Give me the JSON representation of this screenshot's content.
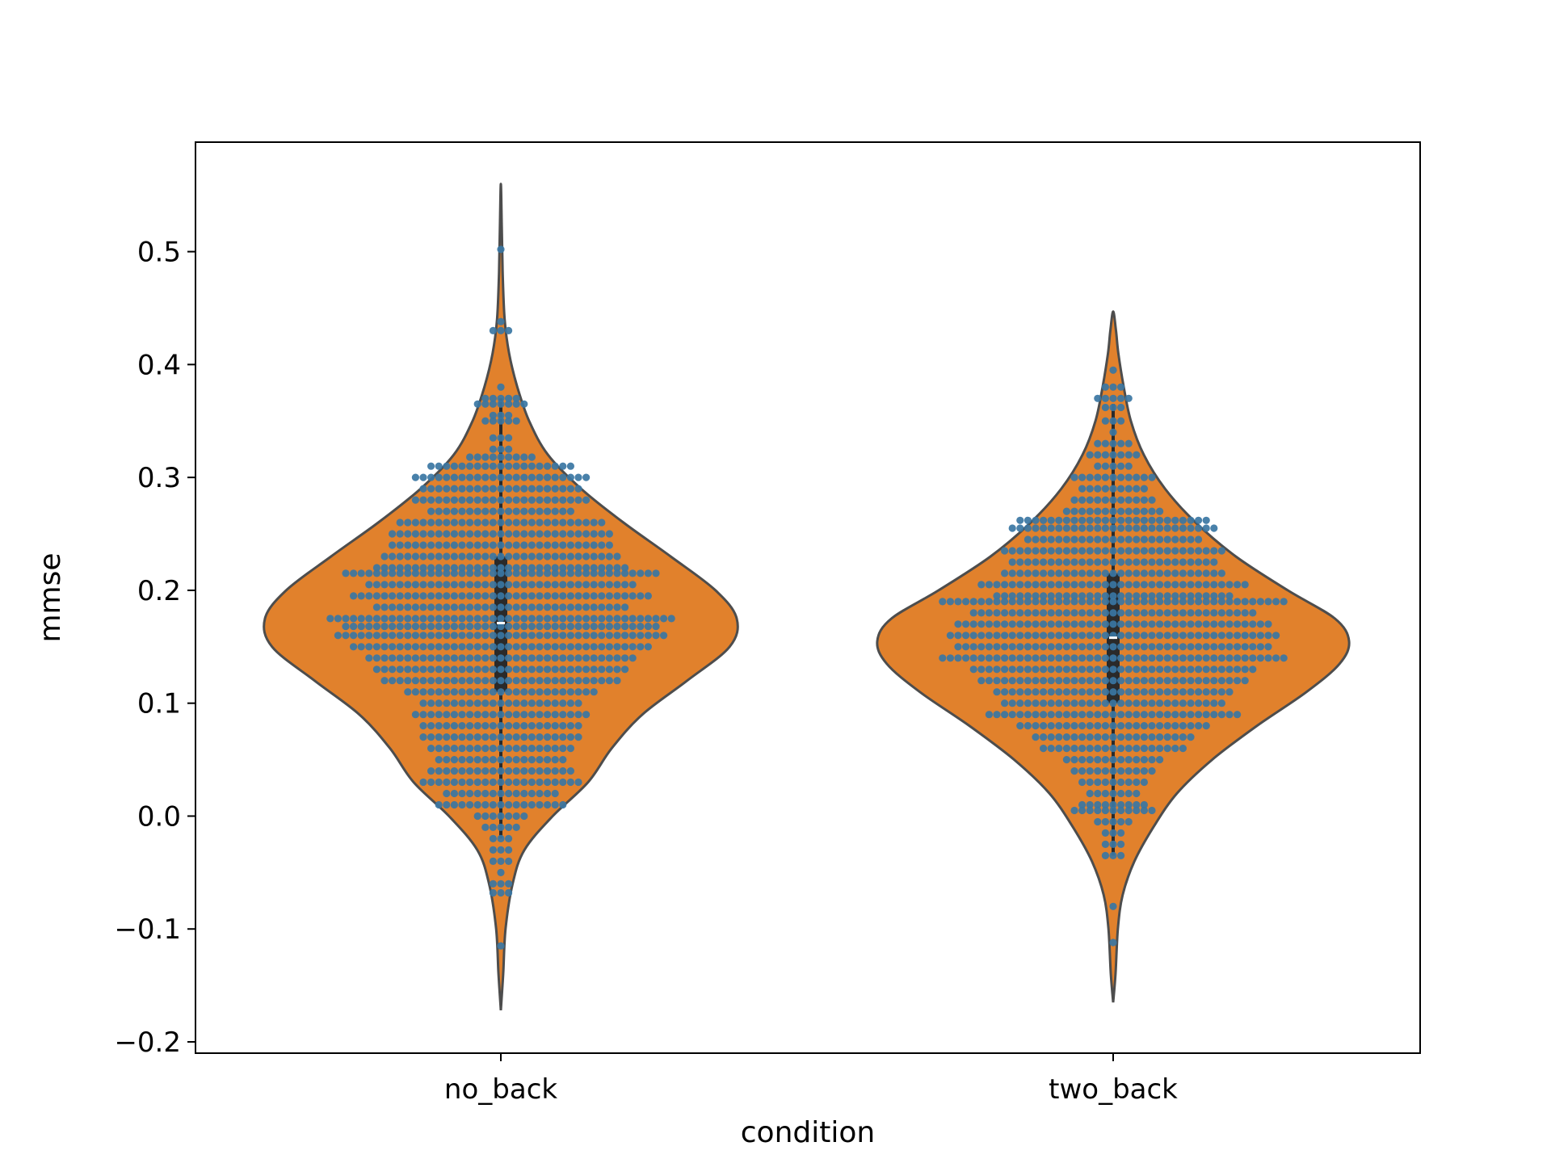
{
  "chart_data": {
    "type": "violin",
    "xlabel": "condition",
    "ylabel": "mmse",
    "ylim": [
      -0.21,
      0.597
    ],
    "yticks": [
      -0.2,
      -0.1,
      0.0,
      0.1,
      0.2,
      0.3,
      0.4,
      0.5
    ],
    "ytick_labels": [
      "−0.2",
      "−0.1",
      "0.0",
      "0.1",
      "0.2",
      "0.3",
      "0.4",
      "0.5"
    ],
    "categories": [
      "no_back",
      "two_back"
    ],
    "grid": false,
    "colors": {
      "violin_fill": "#e1812c",
      "violin_edge": "#4d4d4d",
      "points": "#3a76a3",
      "box": "#2a2a2a",
      "median": "#ffffff"
    },
    "series": [
      {
        "category": "no_back",
        "min": -0.172,
        "max": 0.56,
        "median": 0.171,
        "q1": 0.11,
        "q3": 0.23,
        "whisker_low": -0.02,
        "whisker_high": 0.37,
        "density": [
          [
            -0.172,
            0.0
          ],
          [
            -0.14,
            0.01
          ],
          [
            -0.1,
            0.02
          ],
          [
            -0.06,
            0.05
          ],
          [
            -0.03,
            0.1
          ],
          [
            0.0,
            0.22
          ],
          [
            0.03,
            0.37
          ],
          [
            0.06,
            0.47
          ],
          [
            0.09,
            0.6
          ],
          [
            0.12,
            0.79
          ],
          [
            0.15,
            0.97
          ],
          [
            0.175,
            1.0
          ],
          [
            0.2,
            0.91
          ],
          [
            0.23,
            0.72
          ],
          [
            0.26,
            0.52
          ],
          [
            0.29,
            0.34
          ],
          [
            0.32,
            0.2
          ],
          [
            0.35,
            0.12
          ],
          [
            0.38,
            0.07
          ],
          [
            0.41,
            0.035
          ],
          [
            0.44,
            0.016
          ],
          [
            0.48,
            0.008
          ],
          [
            0.52,
            0.004
          ],
          [
            0.56,
            0.0
          ]
        ],
        "points": [
          [
            0.502,
            0
          ],
          [
            0.438,
            0
          ],
          [
            0.43,
            1
          ],
          [
            0.38,
            0
          ],
          [
            0.37,
            3
          ],
          [
            0.365,
            6
          ],
          [
            0.355,
            2
          ],
          [
            0.35,
            3
          ],
          [
            0.335,
            1
          ],
          [
            0.325,
            2
          ],
          [
            0.318,
            8
          ],
          [
            0.31,
            18
          ],
          [
            0.3,
            22
          ],
          [
            0.29,
            20
          ],
          [
            0.28,
            22
          ],
          [
            0.27,
            18
          ],
          [
            0.26,
            26
          ],
          [
            0.25,
            28
          ],
          [
            0.24,
            28
          ],
          [
            0.23,
            30
          ],
          [
            0.22,
            32
          ],
          [
            0.215,
            40
          ],
          [
            0.205,
            34
          ],
          [
            0.195,
            38
          ],
          [
            0.185,
            32
          ],
          [
            0.175,
            44
          ],
          [
            0.168,
            40
          ],
          [
            0.16,
            42
          ],
          [
            0.15,
            38
          ],
          [
            0.14,
            34
          ],
          [
            0.13,
            32
          ],
          [
            0.12,
            30
          ],
          [
            0.11,
            24
          ],
          [
            0.1,
            20
          ],
          [
            0.09,
            22
          ],
          [
            0.08,
            20
          ],
          [
            0.07,
            20
          ],
          [
            0.06,
            18
          ],
          [
            0.05,
            16
          ],
          [
            0.04,
            18
          ],
          [
            0.03,
            20
          ],
          [
            0.02,
            14
          ],
          [
            0.01,
            16
          ],
          [
            0.0,
            6
          ],
          [
            -0.01,
            4
          ],
          [
            -0.02,
            2
          ],
          [
            -0.03,
            2
          ],
          [
            -0.04,
            1
          ],
          [
            -0.05,
            0
          ],
          [
            -0.06,
            1
          ],
          [
            -0.068,
            1
          ],
          [
            -0.115,
            0
          ]
        ]
      },
      {
        "category": "two_back",
        "min": -0.165,
        "max": 0.447,
        "median": 0.158,
        "q1": 0.1,
        "q3": 0.215,
        "whisker_low": -0.035,
        "whisker_high": 0.365,
        "density": [
          [
            -0.165,
            0.0
          ],
          [
            -0.14,
            0.01
          ],
          [
            -0.1,
            0.02
          ],
          [
            -0.07,
            0.04
          ],
          [
            -0.04,
            0.09
          ],
          [
            -0.01,
            0.17
          ],
          [
            0.02,
            0.27
          ],
          [
            0.05,
            0.42
          ],
          [
            0.08,
            0.61
          ],
          [
            0.11,
            0.82
          ],
          [
            0.135,
            0.96
          ],
          [
            0.155,
            1.0
          ],
          [
            0.175,
            0.94
          ],
          [
            0.2,
            0.74
          ],
          [
            0.23,
            0.52
          ],
          [
            0.26,
            0.35
          ],
          [
            0.29,
            0.22
          ],
          [
            0.32,
            0.13
          ],
          [
            0.35,
            0.075
          ],
          [
            0.38,
            0.045
          ],
          [
            0.41,
            0.022
          ],
          [
            0.43,
            0.012
          ],
          [
            0.447,
            0.0
          ]
        ],
        "points": [
          [
            0.395,
            0
          ],
          [
            0.38,
            2
          ],
          [
            0.37,
            3
          ],
          [
            0.362,
            2
          ],
          [
            0.35,
            1
          ],
          [
            0.34,
            0
          ],
          [
            0.33,
            4
          ],
          [
            0.32,
            6
          ],
          [
            0.31,
            4
          ],
          [
            0.3,
            10
          ],
          [
            0.29,
            8
          ],
          [
            0.28,
            10
          ],
          [
            0.27,
            12
          ],
          [
            0.262,
            24
          ],
          [
            0.255,
            26
          ],
          [
            0.245,
            22
          ],
          [
            0.235,
            28
          ],
          [
            0.225,
            26
          ],
          [
            0.215,
            28
          ],
          [
            0.205,
            34
          ],
          [
            0.195,
            30
          ],
          [
            0.19,
            44
          ],
          [
            0.18,
            36
          ],
          [
            0.17,
            40
          ],
          [
            0.16,
            42
          ],
          [
            0.15,
            40
          ],
          [
            0.14,
            44
          ],
          [
            0.13,
            36
          ],
          [
            0.12,
            34
          ],
          [
            0.11,
            30
          ],
          [
            0.1,
            28
          ],
          [
            0.09,
            32
          ],
          [
            0.08,
            24
          ],
          [
            0.07,
            20
          ],
          [
            0.06,
            18
          ],
          [
            0.05,
            12
          ],
          [
            0.04,
            10
          ],
          [
            0.03,
            8
          ],
          [
            0.02,
            6
          ],
          [
            0.01,
            8
          ],
          [
            0.005,
            10
          ],
          [
            -0.005,
            4
          ],
          [
            -0.015,
            2
          ],
          [
            -0.025,
            2
          ],
          [
            -0.035,
            1
          ],
          [
            -0.08,
            0
          ],
          [
            -0.112,
            0
          ]
        ]
      }
    ]
  }
}
